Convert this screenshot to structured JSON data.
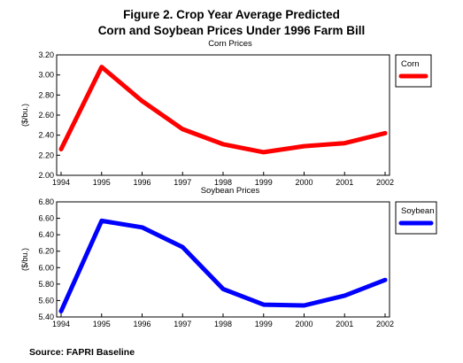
{
  "figure": {
    "title_line1": "Figure 2.  Crop Year Average Predicted",
    "title_line2": "Corn and Soybean Prices Under 1996 Farm Bill",
    "source": "Source:  FAPRI Baseline"
  },
  "chart_data": [
    {
      "type": "line",
      "title": "Corn Prices",
      "ylabel": "($/bu.)",
      "xlabel": "",
      "x": [
        "1994",
        "1995",
        "1996",
        "1997",
        "1998",
        "1999",
        "2000",
        "2001",
        "2002"
      ],
      "series": [
        {
          "name": "Corn",
          "values": [
            2.26,
            3.08,
            2.74,
            2.46,
            2.31,
            2.23,
            2.29,
            2.32,
            2.42
          ]
        }
      ],
      "ylim": [
        2.0,
        3.2
      ],
      "yticks": [
        "2.00",
        "2.20",
        "2.40",
        "2.60",
        "2.80",
        "3.00",
        "3.20"
      ],
      "grid": false,
      "legend": "right",
      "color": "#ff0000"
    },
    {
      "type": "line",
      "title": "Soybean Prices",
      "ylabel": "($/bu.)",
      "xlabel": "",
      "x": [
        "1994",
        "1995",
        "1996",
        "1997",
        "1998",
        "1999",
        "2000",
        "2001",
        "2002"
      ],
      "series": [
        {
          "name": "Soybean",
          "values": [
            5.47,
            6.57,
            6.49,
            6.25,
            5.74,
            5.55,
            5.54,
            5.66,
            5.85
          ]
        }
      ],
      "ylim": [
        5.4,
        6.8
      ],
      "yticks": [
        "5.40",
        "5.60",
        "5.80",
        "6.00",
        "6.20",
        "6.40",
        "6.60",
        "6.80"
      ],
      "grid": false,
      "legend": "right",
      "color": "#0000ff"
    }
  ]
}
